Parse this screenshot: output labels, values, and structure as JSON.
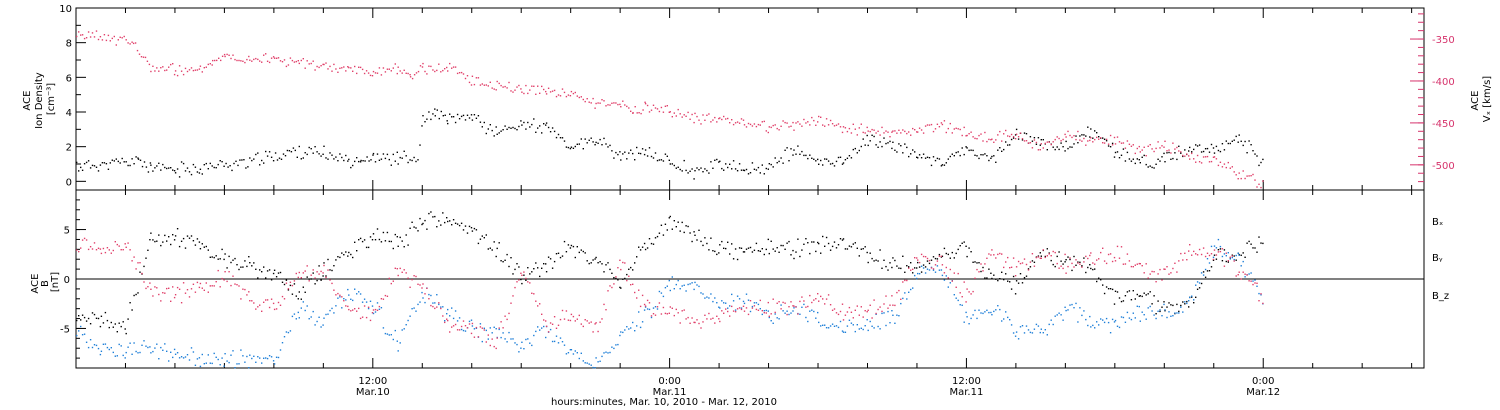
{
  "colors": {
    "density": "#000000",
    "speed": "#e0406a",
    "bx": "#000000",
    "by": "#1e7fd8",
    "bz": "#e0406a"
  },
  "x_axis": {
    "title": "hours:minutes, Mar. 10, 2010 - Mar. 12, 2010",
    "ticks": [
      {
        "hours": 12,
        "time": "12:00",
        "date": "Mar.10"
      },
      {
        "hours": 24,
        "time": "0:00",
        "date": "Mar.11"
      },
      {
        "hours": 36,
        "time": "12:00",
        "date": "Mar.11"
      },
      {
        "hours": 48,
        "time": "0:00",
        "date": "Mar.12"
      }
    ],
    "range_hours": [
      0,
      54.5
    ]
  },
  "chart_data": [
    {
      "type": "scatter",
      "panel": "top",
      "ylabel_left": [
        "ACE",
        "Ion Density",
        "[cm⁻³]"
      ],
      "ylabel_right": [
        "ACE",
        "Vₓ [km/s]"
      ],
      "ylim_left": [
        -0.5,
        10
      ],
      "yticks_left": [
        "0",
        "2",
        "4",
        "6",
        "8",
        "10"
      ],
      "ylim_right": [
        -530,
        -313
      ],
      "yticks_right": [
        "-350",
        "-400",
        "-450",
        "-500"
      ],
      "series": [
        {
          "name": "",
          "color_key": "density",
          "axis": "left",
          "x": [
            0,
            2,
            2.5,
            3,
            4,
            5,
            7,
            9,
            10,
            11,
            11.5,
            12,
            13,
            13.8,
            14,
            14.5,
            15,
            16,
            17,
            18,
            19,
            20,
            21,
            22,
            23,
            24,
            25,
            26,
            27,
            28,
            29,
            30,
            31,
            32,
            33,
            34,
            35,
            36,
            37,
            38,
            39,
            40,
            41,
            42,
            43,
            44,
            45,
            46,
            47,
            48
          ],
          "y": [
            0.9,
            1.1,
            1.3,
            0.8,
            0.7,
            0.8,
            1.2,
            1.8,
            1.6,
            1.3,
            1.3,
            1.4,
            1.4,
            1.3,
            3.5,
            4.0,
            3.5,
            3.8,
            2.8,
            3.4,
            3.1,
            2.0,
            2.4,
            1.5,
            1.7,
            1.2,
            0.6,
            1.1,
            0.6,
            0.9,
            1.8,
            1.1,
            1.3,
            2.4,
            2.2,
            1.5,
            1.2,
            1.8,
            1.3,
            2.8,
            2.2,
            2.0,
            2.9,
            1.8,
            1.1,
            1.4,
            1.8,
            1.8,
            2.6,
            1.1
          ]
        },
        {
          "name": "",
          "color_key": "speed",
          "axis": "right",
          "x": [
            0,
            2,
            2.3,
            3,
            4,
            5,
            5.5,
            6,
            7,
            8,
            9,
            10,
            11,
            12,
            13,
            13.5,
            14,
            15,
            16,
            17,
            18,
            19,
            20,
            21,
            22,
            22.5,
            23,
            24,
            25,
            26,
            27,
            28,
            29,
            30,
            31,
            32,
            33,
            34,
            35,
            36,
            37,
            38,
            39,
            40,
            41,
            42,
            43,
            44,
            45,
            46,
            47,
            48
          ],
          "y": [
            -345,
            -350,
            -357,
            -383,
            -386,
            -387,
            -376,
            -368,
            -372,
            -373,
            -378,
            -383,
            -385,
            -388,
            -385,
            -392,
            -385,
            -383,
            -398,
            -405,
            -408,
            -410,
            -415,
            -425,
            -427,
            -435,
            -430,
            -436,
            -444,
            -446,
            -448,
            -455,
            -452,
            -446,
            -455,
            -458,
            -462,
            -460,
            -452,
            -462,
            -467,
            -464,
            -478,
            -462,
            -470,
            -469,
            -482,
            -475,
            -490,
            -494,
            -510,
            -522
          ]
        }
      ]
    },
    {
      "type": "scatter",
      "panel": "bottom",
      "ylabel_left": [
        "ACE",
        "B",
        "[nT]"
      ],
      "ylim": [
        -9,
        9
      ],
      "yticks": [
        "5",
        "0",
        "-5"
      ],
      "zero_line": true,
      "legend_placement": "right",
      "series": [
        {
          "name": "Bₓ",
          "color_key": "bx",
          "x": [
            0,
            1,
            2,
            3,
            4,
            5,
            6,
            7,
            8,
            9,
            10,
            11,
            12,
            13,
            14,
            15,
            16,
            17,
            18,
            19,
            20,
            21,
            22,
            23,
            24,
            25,
            26,
            27,
            28,
            29,
            30,
            31,
            32,
            33,
            34,
            35,
            36,
            37,
            38,
            39,
            40,
            41,
            42,
            43,
            44,
            45,
            46,
            47,
            48
          ],
          "y": [
            -4.5,
            -4.2,
            -4.8,
            4.0,
            4.5,
            3.5,
            2.0,
            1.5,
            0.5,
            -1.5,
            1.0,
            3.0,
            4.5,
            3.5,
            6.0,
            6.0,
            5.0,
            3.0,
            0.5,
            1.5,
            3.5,
            2.0,
            -0.5,
            3.5,
            6.0,
            4.5,
            3.0,
            2.8,
            3.5,
            3.0,
            3.5,
            3.5,
            2.5,
            1.5,
            1.0,
            2.5,
            3.0,
            0.5,
            -0.5,
            2.5,
            2.0,
            1.0,
            -2.0,
            -1.5,
            -3.0,
            -2.5,
            2.0,
            2.5,
            3.5
          ]
        },
        {
          "name": "Bᵧ",
          "color_key": "by",
          "x": [
            0,
            1,
            2,
            3,
            4,
            5,
            6,
            7,
            8,
            9,
            10,
            11,
            12,
            13,
            14,
            15,
            16,
            17,
            18,
            19,
            20,
            21,
            22,
            23,
            24,
            25,
            26,
            27,
            28,
            29,
            30,
            31,
            32,
            33,
            34,
            35,
            36,
            37,
            38,
            39,
            40,
            41,
            42,
            43,
            44,
            45,
            46,
            47,
            48
          ],
          "y": [
            -5.0,
            -7.0,
            -7.2,
            -7.0,
            -7.5,
            -8.0,
            -8.0,
            -8.2,
            -8.0,
            -3.0,
            -4.0,
            -1.5,
            -2.5,
            -6.5,
            -1.5,
            -3.5,
            -5.0,
            -5.5,
            -6.5,
            -5.0,
            -7.5,
            -8.5,
            -6.0,
            -3.5,
            -0.5,
            -1.0,
            -2.5,
            -2.0,
            -3.5,
            -3.0,
            -4.0,
            -5.0,
            -4.5,
            -4.0,
            0.5,
            1.0,
            -4.0,
            -3.0,
            -5.0,
            -5.0,
            -3.0,
            -4.0,
            -4.5,
            -3.5,
            -3.5,
            -2.5,
            3.5,
            2.0,
            -2.5
          ]
        },
        {
          "name": "B_z",
          "color_key": "bz",
          "x": [
            0,
            1,
            2,
            3,
            4,
            5,
            6,
            7,
            8,
            9,
            10,
            11,
            12,
            13,
            14,
            15,
            16,
            17,
            18,
            19,
            20,
            21,
            22,
            23,
            24,
            25,
            26,
            27,
            28,
            29,
            30,
            31,
            32,
            33,
            34,
            35,
            36,
            37,
            38,
            39,
            40,
            41,
            42,
            43,
            44,
            45,
            46,
            47,
            48
          ],
          "y": [
            4.0,
            3.0,
            3.5,
            -1.0,
            -1.5,
            -1.0,
            0.5,
            -2.0,
            -2.5,
            1.0,
            0.5,
            -3.0,
            -3.5,
            1.0,
            -1.0,
            -4.5,
            -5.0,
            -6.5,
            1.0,
            -4.5,
            -3.5,
            -5.0,
            1.5,
            -3.0,
            -3.0,
            -4.0,
            -3.5,
            -3.0,
            -3.0,
            -2.5,
            -2.0,
            -3.5,
            -3.0,
            -2.5,
            2.0,
            1.5,
            -1.5,
            3.0,
            1.0,
            2.5,
            1.5,
            2.0,
            2.5,
            1.5,
            0.5,
            3.0,
            3.0,
            1.0,
            -2.0
          ]
        }
      ]
    }
  ]
}
